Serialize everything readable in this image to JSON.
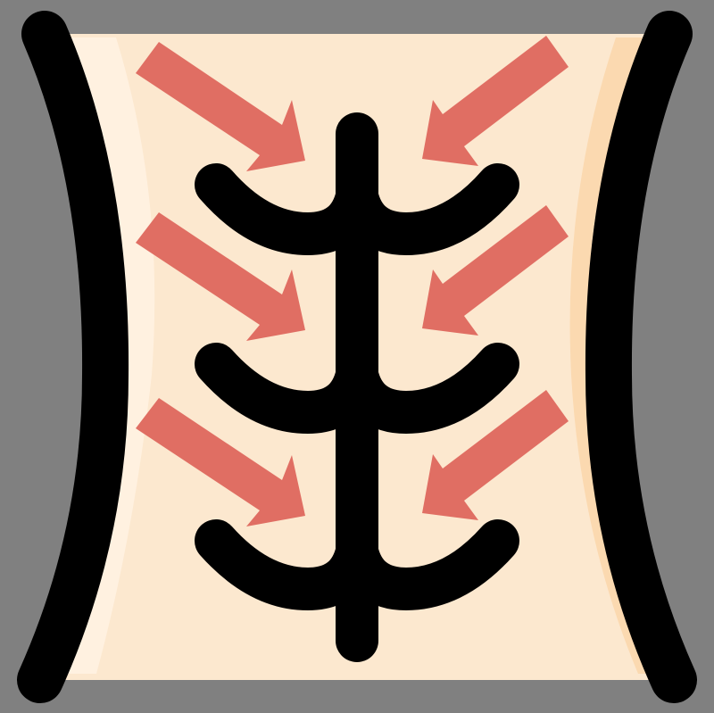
{
  "image": {
    "subject": "torso-spine-compression-icon",
    "colors": {
      "background": "#808080",
      "skin_base": "#fce8cf",
      "skin_highlight": "#fff1e0",
      "skin_shadow": "#fbd9b0",
      "outline": "#000000",
      "arrow": "#e06e63"
    },
    "arrows": {
      "count": 6,
      "left_direction": "down-right",
      "right_direction": "down-left"
    },
    "spine": {
      "rib_pairs": 3
    }
  }
}
